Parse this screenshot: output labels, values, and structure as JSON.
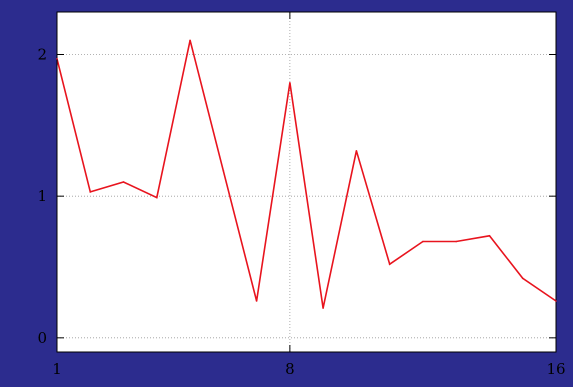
{
  "colors": {
    "frame_background": "#2c2c8e",
    "plot_background": "#ffffff",
    "line": "#e8141e",
    "grid": "#9a9a9a",
    "axis": "#000000"
  },
  "chart_data": {
    "type": "line",
    "title": "",
    "xlabel": "",
    "ylabel": "",
    "x": [
      1,
      2,
      3,
      4,
      5,
      6,
      7,
      8,
      9,
      10,
      11,
      12,
      13,
      14,
      15,
      16
    ],
    "series": [
      {
        "values": [
          1.97,
          1.03,
          1.1,
          0.99,
          2.1,
          1.18,
          0.26,
          1.8,
          0.21,
          1.32,
          0.52,
          0.68,
          0.68,
          0.72,
          0.42,
          0.26
        ]
      }
    ],
    "xlim": [
      1,
      16
    ],
    "ylim": [
      -0.1,
      2.3
    ],
    "x_ticks": [
      1,
      8,
      16
    ],
    "y_ticks": [
      0,
      1,
      2
    ],
    "x_tick_labels": [
      "1",
      "8",
      "16"
    ],
    "y_tick_labels": [
      "0",
      "1",
      "2"
    ],
    "grid": true,
    "grid_style": "dotted",
    "legend": "none"
  }
}
